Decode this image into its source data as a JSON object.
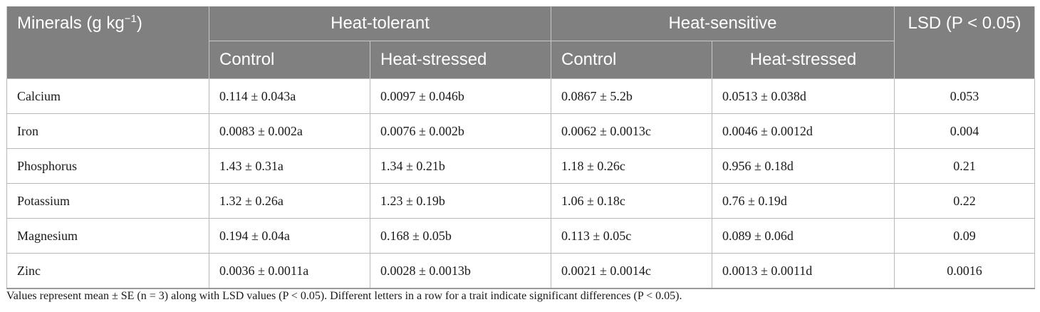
{
  "table": {
    "header": {
      "minerals_label": "Minerals (g kg",
      "minerals_exp": "−1",
      "minerals_close": ")",
      "group_tolerant": "Heat-tolerant",
      "group_sensitive": "Heat-sensitive",
      "lsd_label": "LSD (P < 0.05)",
      "sub": [
        "Control",
        "Heat-stressed",
        "Control",
        "Heat-stressed"
      ]
    },
    "rows": [
      {
        "mineral": "Calcium",
        "values": [
          "0.114 ± 0.043a",
          "0.0097 ± 0.046b",
          "0.0867 ± 5.2b",
          "0.0513 ± 0.038d"
        ],
        "lsd": "0.053"
      },
      {
        "mineral": "Iron",
        "values": [
          "0.0083 ± 0.002a",
          "0.0076 ± 0.002b",
          "0.0062 ± 0.0013c",
          "0.0046 ± 0.0012d"
        ],
        "lsd": "0.004"
      },
      {
        "mineral": "Phosphorus",
        "values": [
          "1.43 ± 0.31a",
          "1.34 ± 0.21b",
          "1.18 ± 0.26c",
          "0.956 ± 0.18d"
        ],
        "lsd": "0.21"
      },
      {
        "mineral": "Potassium",
        "values": [
          "1.32 ± 0.26a",
          "1.23 ± 0.19b",
          "1.06 ± 0.18c",
          "0.76 ± 0.19d"
        ],
        "lsd": "0.22"
      },
      {
        "mineral": "Magnesium",
        "values": [
          "0.194 ± 0.04a",
          "0.168 ± 0.05b",
          "0.113 ± 0.05c",
          "0.089 ± 0.06d"
        ],
        "lsd": "0.09"
      },
      {
        "mineral": "Zinc",
        "values": [
          "0.0036 ± 0.0011a",
          "0.0028 ± 0.0013b",
          "0.0021 ± 0.0014c",
          "0.0013 ± 0.0011d"
        ],
        "lsd": "0.0016"
      }
    ],
    "footnote": "Values represent mean ± SE (n = 3) along with LSD values (P < 0.05). Different letters in a row for a trait indicate significant differences (P < 0.05)."
  }
}
